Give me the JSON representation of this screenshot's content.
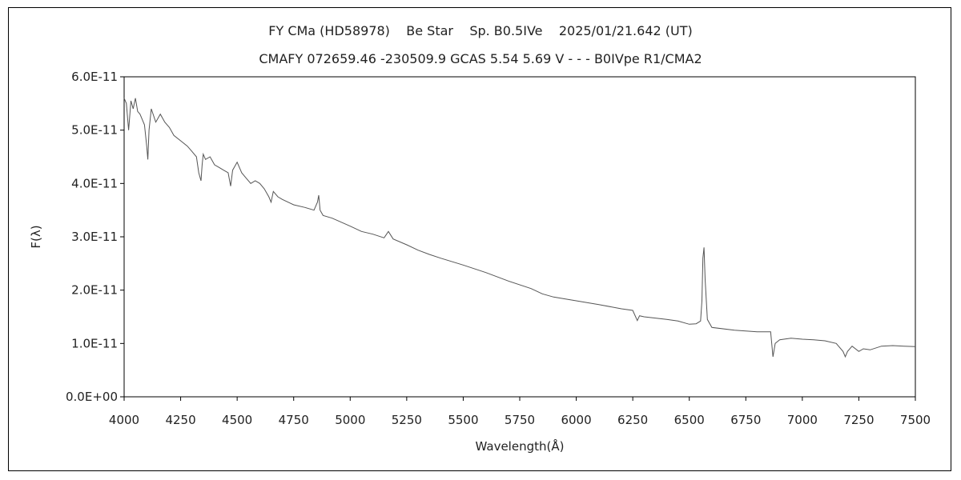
{
  "chart_data": {
    "type": "line",
    "title": "FY CMa (HD58978)    Be Star    Sp. B0.5IVe    2025/01/21.642 (UT)",
    "subtitle": "CMAFY 072659.46 -230509.9 GCAS 5.54 5.69 V - - - B0IVpe R1/CMA2",
    "xlabel": "Wavelength(Å)",
    "ylabel": "F(λ)",
    "xlim": [
      4000,
      7500
    ],
    "ylim": [
      0,
      6e-11
    ],
    "grid": false,
    "x_ticks": [
      4000,
      4250,
      4500,
      4750,
      5000,
      5250,
      5500,
      5750,
      6000,
      6250,
      6500,
      6750,
      7000,
      7250,
      7500
    ],
    "x_tick_labels": [
      "4000",
      "4250",
      "4500",
      "4750",
      "5000",
      "5250",
      "5500",
      "5750",
      "6000",
      "6250",
      "6500",
      "6750",
      "7000",
      "7250",
      "7500"
    ],
    "y_ticks": [
      0,
      1e-11,
      2e-11,
      3e-11,
      4e-11,
      5e-11,
      6e-11
    ],
    "y_tick_labels": [
      "0.0E+00",
      "1.0E-11",
      "2.0E-11",
      "3.0E-11",
      "4.0E-11",
      "5.0E-11",
      "6.0E-11"
    ],
    "line_color": "#555555",
    "series": [
      {
        "x": [
          4000,
          4010,
          4020,
          4030,
          4040,
          4050,
          4060,
          4070,
          4080,
          4090,
          4100,
          4105,
          4110,
          4120,
          4140,
          4160,
          4180,
          4200,
          4220,
          4250,
          4280,
          4300,
          4320,
          4330,
          4340,
          4345,
          4350,
          4360,
          4380,
          4400,
          4420,
          4440,
          4460,
          4471,
          4480,
          4500,
          4520,
          4540,
          4560,
          4580,
          4600,
          4620,
          4640,
          4650,
          4660,
          4680,
          4700,
          4750,
          4800,
          4840,
          4855,
          4861,
          4867,
          4880,
          4920,
          5000,
          5050,
          5100,
          5150,
          5169,
          5190,
          5250,
          5300,
          5350,
          5400,
          5500,
          5600,
          5700,
          5800,
          5850,
          5900,
          6000,
          6100,
          6200,
          6250,
          6270,
          6280,
          6300,
          6400,
          6450,
          6500,
          6530,
          6550,
          6556,
          6560,
          6565,
          6570,
          6580,
          6600,
          6700,
          6800,
          6860,
          6870,
          6880,
          6900,
          6950,
          7000,
          7050,
          7100,
          7150,
          7180,
          7190,
          7200,
          7220,
          7250,
          7270,
          7300,
          7350,
          7400,
          7450,
          7500
        ],
        "y": [
          5.6e-11,
          5.5e-11,
          5e-11,
          5.55e-11,
          5.4e-11,
          5.6e-11,
          5.35e-11,
          5.3e-11,
          5.2e-11,
          5.1e-11,
          4.7e-11,
          4.45e-11,
          5e-11,
          5.4e-11,
          5.15e-11,
          5.3e-11,
          5.15e-11,
          5.05e-11,
          4.9e-11,
          4.8e-11,
          4.7e-11,
          4.6e-11,
          4.5e-11,
          4.2e-11,
          4.05e-11,
          4.35e-11,
          4.55e-11,
          4.45e-11,
          4.5e-11,
          4.35e-11,
          4.3e-11,
          4.25e-11,
          4.2e-11,
          3.95e-11,
          4.25e-11,
          4.4e-11,
          4.2e-11,
          4.1e-11,
          4e-11,
          4.05e-11,
          4e-11,
          3.9e-11,
          3.75e-11,
          3.65e-11,
          3.85e-11,
          3.75e-11,
          3.7e-11,
          3.6e-11,
          3.55e-11,
          3.5e-11,
          3.65e-11,
          3.78e-11,
          3.5e-11,
          3.4e-11,
          3.35e-11,
          3.2e-11,
          3.1e-11,
          3.05e-11,
          2.98e-11,
          3.1e-11,
          2.96e-11,
          2.85e-11,
          2.75e-11,
          2.67e-11,
          2.6e-11,
          2.47e-11,
          2.33e-11,
          2.17e-11,
          2.03e-11,
          1.93e-11,
          1.87e-11,
          1.8e-11,
          1.73e-11,
          1.65e-11,
          1.62e-11,
          1.43e-11,
          1.52e-11,
          1.5e-11,
          1.45e-11,
          1.42e-11,
          1.36e-11,
          1.37e-11,
          1.42e-11,
          1.8e-11,
          2.6e-11,
          2.8e-11,
          2.2e-11,
          1.45e-11,
          1.3e-11,
          1.25e-11,
          1.22e-11,
          1.22e-11,
          7.5e-12,
          1e-11,
          1.07e-11,
          1.1e-11,
          1.08e-11,
          1.07e-11,
          1.05e-11,
          1e-11,
          8.5e-12,
          7.5e-12,
          8.5e-12,
          9.5e-12,
          8.5e-12,
          9e-12,
          8.8e-12,
          9.5e-12,
          9.6e-12,
          9.5e-12,
          9.4e-12
        ]
      }
    ]
  }
}
